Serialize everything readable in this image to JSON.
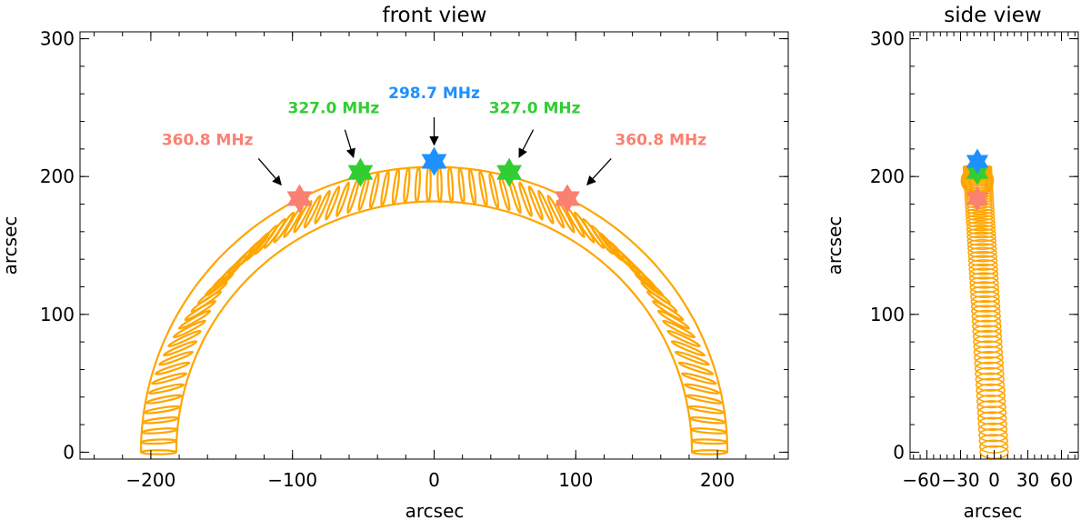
{
  "colors": {
    "loop": "#ffa500",
    "red_source": "#fa8072",
    "green_source": "#32cd32",
    "blue_source": "#1e90ff",
    "axis": "#000000"
  },
  "chart_data": [
    {
      "type": "scatter",
      "title": "front view",
      "xlabel": "arcsec",
      "ylabel": "arcsec",
      "xlim": [
        -250,
        250
      ],
      "ylim": [
        -5,
        305
      ],
      "xticks": [
        -200,
        -100,
        0,
        100,
        200
      ],
      "xtick_labels": [
        "−200",
        "−100",
        "0",
        "100",
        "200"
      ],
      "yticks": [
        0,
        100,
        200,
        300
      ],
      "ytick_labels": [
        "0",
        "100",
        "200",
        "300"
      ],
      "loop": {
        "shape": "semicircular arc of cross-section ellipses",
        "outer_radius": 207,
        "inner_radius": 182,
        "center": [
          0,
          0
        ]
      },
      "sources": [
        {
          "x": -95,
          "y": 184,
          "freq": "360.8 MHz",
          "color": "#fa8072"
        },
        {
          "x": -52,
          "y": 203,
          "freq": "327.0 MHz",
          "color": "#32cd32"
        },
        {
          "x": 0,
          "y": 211,
          "freq": "298.7 MHz",
          "color": "#1e90ff"
        },
        {
          "x": 53,
          "y": 203,
          "freq": "327.0 MHz",
          "color": "#32cd32"
        },
        {
          "x": 94,
          "y": 184,
          "freq": "360.8 MHz",
          "color": "#fa8072"
        }
      ],
      "annotations": [
        {
          "text": "360.8 MHz",
          "color": "#fa8072",
          "text_x": -160,
          "text_y": 223,
          "arrow_from": [
            -124,
            213
          ],
          "arrow_to": [
            -108,
            194
          ]
        },
        {
          "text": "327.0 MHz",
          "color": "#32cd32",
          "text_x": -71,
          "text_y": 246,
          "arrow_from": [
            -63,
            234
          ],
          "arrow_to": [
            -57,
            214
          ]
        },
        {
          "text": "298.7 MHz",
          "color": "#1e90ff",
          "text_x": 0,
          "text_y": 257,
          "arrow_from": [
            0,
            243
          ],
          "arrow_to": [
            0,
            223
          ]
        },
        {
          "text": "327.0 MHz",
          "color": "#32cd32",
          "text_x": 71,
          "text_y": 246,
          "arrow_from": [
            70,
            234
          ],
          "arrow_to": [
            60,
            214
          ]
        },
        {
          "text": "360.8 MHz",
          "color": "#fa8072",
          "text_x": 160,
          "text_y": 223,
          "arrow_from": [
            125,
            213
          ],
          "arrow_to": [
            108,
            194
          ]
        }
      ]
    },
    {
      "type": "scatter",
      "title": "side view",
      "xlabel": "arcsec",
      "ylabel": "arcsec",
      "xlim": [
        -75,
        75
      ],
      "ylim": [
        -5,
        305
      ],
      "xticks": [
        -60,
        -30,
        0,
        30,
        60
      ],
      "xtick_labels": [
        "−60",
        "−30",
        "0",
        "30",
        "60"
      ],
      "yticks": [
        0,
        100,
        200,
        300
      ],
      "ytick_labels": [
        "0",
        "100",
        "200",
        "300"
      ],
      "loop": {
        "shape": "tilted column of cross-section ellipses",
        "base_x": 0,
        "top_x": -15,
        "top_y": 207,
        "radius": 12.5
      },
      "sources": [
        {
          "x": -15,
          "y": 184,
          "freq": "360.8 MHz",
          "color": "#fa8072"
        },
        {
          "x": -15,
          "y": 203,
          "freq": "327.0 MHz",
          "color": "#32cd32"
        },
        {
          "x": -15,
          "y": 211,
          "freq": "298.7 MHz",
          "color": "#1e90ff"
        }
      ]
    }
  ]
}
